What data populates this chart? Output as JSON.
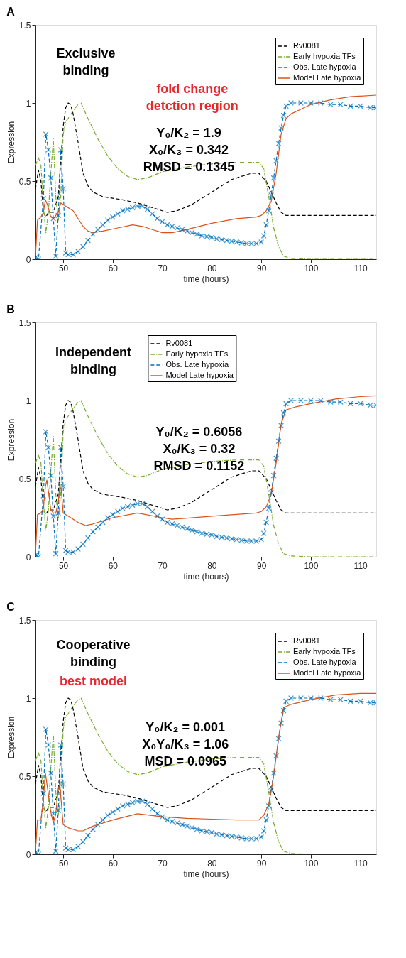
{
  "chart_data": [
    {
      "type": "line",
      "title": "A",
      "xlabel": "time (hours)",
      "ylabel": "Expression",
      "xlim": [
        44.4,
        113.2
      ],
      "ylim": [
        0,
        1.5
      ],
      "xticks": [
        50,
        60,
        70,
        80,
        90,
        100,
        110
      ],
      "yticks": [
        0,
        0.5,
        1,
        1.5
      ],
      "grid": false,
      "legend": "top right",
      "annotations": [
        "Exclusive\nbinding",
        "fold change\ndetction region",
        "Y₀/K₂ = 1.9\nX₀/K₃ = 0.342\nRMSD = 0.1345"
      ],
      "series": [
        {
          "name": "Rv0081",
          "color": "#000000",
          "line_style": "dashed",
          "x": [
            44.4,
            45,
            45.5,
            46,
            46.5,
            47,
            48,
            49,
            50,
            50.5,
            51,
            51.5,
            52,
            53,
            54,
            55,
            56,
            58,
            60,
            62,
            65,
            68,
            71,
            73,
            76,
            80,
            84,
            88,
            89.5,
            91,
            92,
            93,
            94,
            95,
            113.2
          ],
          "values": [
            0.45,
            0.57,
            0.5,
            0.3,
            0.27,
            0.3,
            0.3,
            0.4,
            0.85,
            0.97,
            1.0,
            0.99,
            0.93,
            0.75,
            0.55,
            0.47,
            0.43,
            0.4,
            0.39,
            0.38,
            0.36,
            0.33,
            0.3,
            0.31,
            0.35,
            0.43,
            0.51,
            0.55,
            0.55,
            0.5,
            0.43,
            0.36,
            0.3,
            0.28,
            0.28
          ]
        },
        {
          "name": "Early hypoxia TFs",
          "color": "#77ac30",
          "line_style": "dashdot",
          "x": [
            44.4,
            45,
            45.5,
            46,
            46.5,
            47,
            47.5,
            48,
            48.5,
            49,
            49.5,
            50,
            50.5,
            51,
            52,
            53,
            53.6,
            55,
            57,
            59,
            61,
            63,
            65,
            67,
            70,
            75,
            80,
            85,
            89.5,
            90.5,
            91.5,
            92.5,
            93.5,
            94.5,
            96,
            100,
            113.2
          ],
          "values": [
            0.6,
            0.65,
            0.6,
            0.35,
            0.17,
            0.3,
            0.55,
            0.77,
            0.4,
            0.25,
            0.4,
            0.8,
            0.88,
            0.9,
            0.95,
            0.99,
            1.0,
            0.9,
            0.77,
            0.66,
            0.58,
            0.53,
            0.51,
            0.52,
            0.56,
            0.59,
            0.61,
            0.62,
            0.62,
            0.58,
            0.4,
            0.2,
            0.08,
            0.02,
            0.005,
            0.0,
            0.0
          ]
        },
        {
          "name": "Obs. Late hypoxia",
          "color": "#0072bd",
          "line_style": "dashed",
          "marker": "cross",
          "x": [
            44.4,
            45,
            46,
            46.5,
            47,
            47.5,
            48,
            48.5,
            49,
            49.5,
            50,
            50.5,
            51,
            52,
            53,
            54,
            55,
            56,
            57,
            58,
            59,
            60,
            61,
            62,
            63,
            64,
            65,
            66,
            67,
            68,
            69,
            70,
            71,
            72,
            73,
            74,
            75,
            76,
            77,
            78,
            79,
            80,
            81,
            82,
            83,
            84,
            85,
            86,
            87,
            88,
            89,
            90,
            90.5,
            91,
            91.5,
            92,
            92.5,
            93,
            93.5,
            94,
            94.5,
            95,
            96,
            98,
            100,
            102,
            104,
            106,
            108,
            110,
            112,
            113.2
          ],
          "values": [
            0.01,
            0.0,
            0.39,
            0.8,
            0.7,
            0.52,
            0.26,
            0.02,
            0.28,
            0.7,
            0.45,
            0.04,
            0.03,
            0.03,
            0.05,
            0.08,
            0.12,
            0.16,
            0.19,
            0.22,
            0.25,
            0.27,
            0.29,
            0.31,
            0.32,
            0.33,
            0.34,
            0.34,
            0.32,
            0.29,
            0.26,
            0.24,
            0.22,
            0.21,
            0.2,
            0.19,
            0.18,
            0.17,
            0.16,
            0.15,
            0.145,
            0.14,
            0.13,
            0.125,
            0.12,
            0.115,
            0.11,
            0.105,
            0.1,
            0.1,
            0.1,
            0.11,
            0.15,
            0.22,
            0.31,
            0.41,
            0.52,
            0.63,
            0.74,
            0.84,
            0.92,
            0.98,
            1.0,
            1.0,
            1.0,
            1.0,
            0.99,
            0.99,
            0.98,
            0.98,
            0.97,
            0.97
          ]
        },
        {
          "name": "Model Late hypoxia",
          "color": "#d95319",
          "line_style": "solid",
          "x": [
            44.4,
            44.8,
            45.5,
            46,
            46.4,
            46.8,
            47.5,
            48,
            48.5,
            49,
            49.5,
            50,
            51,
            52,
            53,
            54,
            55,
            56,
            58,
            61,
            64,
            66,
            68,
            70,
            72,
            75,
            80,
            85,
            89,
            90,
            91,
            92,
            93,
            94,
            95,
            96,
            98,
            100,
            104,
            108,
            113.2
          ],
          "values": [
            0.02,
            0.25,
            0.27,
            0.3,
            0.38,
            0.35,
            0.27,
            0.26,
            0.28,
            0.3,
            0.36,
            0.35,
            0.33,
            0.31,
            0.26,
            0.21,
            0.18,
            0.17,
            0.18,
            0.2,
            0.22,
            0.21,
            0.19,
            0.17,
            0.17,
            0.19,
            0.23,
            0.26,
            0.27,
            0.28,
            0.31,
            0.37,
            0.55,
            0.8,
            0.9,
            0.93,
            0.96,
            0.99,
            1.02,
            1.04,
            1.05
          ]
        }
      ]
    },
    {
      "type": "line",
      "title": "B",
      "xlabel": "time (hours)",
      "ylabel": "Expression",
      "xlim": [
        44.4,
        113.2
      ],
      "ylim": [
        0,
        1.5
      ],
      "xticks": [
        50,
        60,
        70,
        80,
        90,
        100,
        110
      ],
      "yticks": [
        0,
        0.5,
        1,
        1.5
      ],
      "grid": false,
      "legend": "top",
      "annotations": [
        "Independent\nbinding",
        "Y₀/K₂ = 0.6056\nX₀/K₃ = 0.32\nRMSD = 0.1152"
      ],
      "series": [
        {
          "name": "Rv0081",
          "color": "#000000",
          "line_style": "dashed",
          "x": [
            44.4,
            45,
            45.5,
            46,
            46.5,
            47,
            48,
            49,
            50,
            50.5,
            51,
            51.5,
            52,
            53,
            54,
            55,
            56,
            58,
            60,
            62,
            65,
            68,
            71,
            73,
            76,
            80,
            84,
            88,
            89.5,
            91,
            92,
            93,
            94,
            95,
            113.2
          ],
          "values": [
            0.45,
            0.57,
            0.5,
            0.3,
            0.27,
            0.3,
            0.3,
            0.4,
            0.85,
            0.97,
            1.0,
            0.99,
            0.93,
            0.75,
            0.55,
            0.47,
            0.43,
            0.4,
            0.39,
            0.38,
            0.36,
            0.33,
            0.3,
            0.31,
            0.35,
            0.43,
            0.51,
            0.55,
            0.55,
            0.5,
            0.43,
            0.36,
            0.3,
            0.28,
            0.28
          ]
        },
        {
          "name": "Early hypoxia TFs",
          "color": "#77ac30",
          "line_style": "dashdot",
          "x": [
            44.4,
            45,
            45.5,
            46,
            46.5,
            47,
            47.5,
            48,
            48.5,
            49,
            49.5,
            50,
            50.5,
            51,
            52,
            53,
            53.6,
            55,
            57,
            59,
            61,
            63,
            65,
            67,
            70,
            75,
            80,
            85,
            89.5,
            90.5,
            91.5,
            92.5,
            93.5,
            94.5,
            96,
            100,
            113.2
          ],
          "values": [
            0.6,
            0.65,
            0.6,
            0.35,
            0.17,
            0.3,
            0.55,
            0.77,
            0.4,
            0.25,
            0.4,
            0.8,
            0.88,
            0.9,
            0.95,
            0.99,
            1.0,
            0.9,
            0.77,
            0.66,
            0.58,
            0.53,
            0.51,
            0.52,
            0.56,
            0.59,
            0.61,
            0.62,
            0.62,
            0.58,
            0.4,
            0.2,
            0.08,
            0.02,
            0.005,
            0.0,
            0.0
          ]
        },
        {
          "name": "Obs. Late hypoxia",
          "color": "#0072bd",
          "line_style": "dashed",
          "marker": "cross",
          "x": [
            44.4,
            45,
            46,
            46.5,
            47,
            47.5,
            48,
            48.5,
            49,
            49.5,
            50,
            50.5,
            51,
            52,
            53,
            54,
            55,
            56,
            57,
            58,
            59,
            60,
            61,
            62,
            63,
            64,
            65,
            66,
            67,
            68,
            69,
            70,
            71,
            72,
            73,
            74,
            75,
            76,
            77,
            78,
            79,
            80,
            81,
            82,
            83,
            84,
            85,
            86,
            87,
            88,
            89,
            90,
            90.5,
            91,
            91.5,
            92,
            92.5,
            93,
            93.5,
            94,
            94.5,
            95,
            96,
            98,
            100,
            102,
            104,
            106,
            108,
            110,
            112,
            113.2
          ],
          "values": [
            0.01,
            0.0,
            0.39,
            0.8,
            0.7,
            0.52,
            0.26,
            0.02,
            0.28,
            0.7,
            0.45,
            0.04,
            0.03,
            0.03,
            0.05,
            0.08,
            0.12,
            0.16,
            0.19,
            0.22,
            0.25,
            0.27,
            0.29,
            0.31,
            0.32,
            0.33,
            0.34,
            0.34,
            0.32,
            0.29,
            0.26,
            0.24,
            0.22,
            0.21,
            0.2,
            0.19,
            0.18,
            0.17,
            0.16,
            0.15,
            0.145,
            0.14,
            0.13,
            0.125,
            0.12,
            0.115,
            0.11,
            0.105,
            0.1,
            0.1,
            0.1,
            0.11,
            0.15,
            0.22,
            0.31,
            0.41,
            0.52,
            0.63,
            0.74,
            0.84,
            0.92,
            0.98,
            1.0,
            1.0,
            1.0,
            1.0,
            0.99,
            0.99,
            0.98,
            0.98,
            0.97,
            0.97
          ]
        },
        {
          "name": "Model Late hypoxia",
          "color": "#d95319",
          "line_style": "solid",
          "x": [
            44.4,
            44.8,
            45.5,
            46,
            46.4,
            46.7,
            47,
            47.5,
            48,
            48.5,
            49,
            49.3,
            49.6,
            50,
            51,
            53,
            54.5,
            56,
            60,
            65,
            70,
            72,
            80,
            89,
            90,
            91,
            92,
            93,
            94,
            95,
            97,
            100,
            105,
            110,
            113.2
          ],
          "values": [
            0.02,
            0.27,
            0.28,
            0.31,
            0.45,
            0.49,
            0.42,
            0.3,
            0.28,
            0.28,
            0.35,
            0.45,
            0.43,
            0.28,
            0.26,
            0.22,
            0.2,
            0.21,
            0.25,
            0.28,
            0.25,
            0.24,
            0.26,
            0.28,
            0.29,
            0.32,
            0.4,
            0.6,
            0.85,
            0.94,
            0.96,
            0.98,
            1.01,
            1.025,
            1.03
          ]
        }
      ]
    },
    {
      "type": "line",
      "title": "C",
      "xlabel": "time (hours)",
      "ylabel": "Expression",
      "xlim": [
        44.4,
        113.2
      ],
      "ylim": [
        0,
        1.5
      ],
      "xticks": [
        50,
        60,
        70,
        80,
        90,
        100,
        110
      ],
      "yticks": [
        0,
        0.5,
        1,
        1.5
      ],
      "grid": false,
      "legend": "top right",
      "annotations": [
        "Cooperative\nbinding",
        "best model",
        "Y₀/K₂ = 0.001\nX₀Y₀/K₃ = 1.06\nMSD = 0.0965"
      ],
      "series": [
        {
          "name": "Rv0081",
          "color": "#000000",
          "line_style": "dashed",
          "x": [
            44.4,
            45,
            45.5,
            46,
            46.5,
            47,
            48,
            49,
            50,
            50.5,
            51,
            51.5,
            52,
            53,
            54,
            55,
            56,
            58,
            60,
            62,
            65,
            68,
            71,
            73,
            76,
            80,
            84,
            88,
            89.5,
            91,
            92,
            93,
            94,
            95,
            113.2
          ],
          "values": [
            0.45,
            0.57,
            0.5,
            0.3,
            0.27,
            0.3,
            0.3,
            0.4,
            0.85,
            0.97,
            1.0,
            0.99,
            0.93,
            0.75,
            0.55,
            0.47,
            0.43,
            0.4,
            0.39,
            0.38,
            0.36,
            0.33,
            0.3,
            0.31,
            0.35,
            0.43,
            0.51,
            0.55,
            0.55,
            0.5,
            0.43,
            0.36,
            0.3,
            0.28,
            0.28
          ]
        },
        {
          "name": "Early hypoxia TFs",
          "color": "#77ac30",
          "line_style": "dashdot",
          "x": [
            44.4,
            45,
            45.5,
            46,
            46.5,
            47,
            47.5,
            48,
            48.5,
            49,
            49.5,
            50,
            50.5,
            51,
            52,
            53,
            53.6,
            55,
            57,
            59,
            61,
            63,
            65,
            67,
            70,
            75,
            80,
            85,
            89.5,
            90.5,
            91.5,
            92.5,
            93.5,
            94.5,
            96,
            100,
            113.2
          ],
          "values": [
            0.6,
            0.65,
            0.6,
            0.35,
            0.17,
            0.3,
            0.55,
            0.77,
            0.4,
            0.25,
            0.4,
            0.8,
            0.88,
            0.9,
            0.95,
            0.99,
            1.0,
            0.9,
            0.77,
            0.66,
            0.58,
            0.53,
            0.51,
            0.52,
            0.56,
            0.59,
            0.61,
            0.62,
            0.62,
            0.58,
            0.4,
            0.2,
            0.08,
            0.02,
            0.005,
            0.0,
            0.0
          ]
        },
        {
          "name": "Obs. Late hypoxia",
          "color": "#0072bd",
          "line_style": "dashed",
          "marker": "cross",
          "x": [
            44.4,
            45,
            46,
            46.5,
            47,
            47.5,
            48,
            48.5,
            49,
            49.5,
            50,
            50.5,
            51,
            52,
            53,
            54,
            55,
            56,
            57,
            58,
            59,
            60,
            61,
            62,
            63,
            64,
            65,
            66,
            67,
            68,
            69,
            70,
            71,
            72,
            73,
            74,
            75,
            76,
            77,
            78,
            79,
            80,
            81,
            82,
            83,
            84,
            85,
            86,
            87,
            88,
            89,
            90,
            90.5,
            91,
            91.5,
            92,
            92.5,
            93,
            93.5,
            94,
            94.5,
            95,
            96,
            98,
            100,
            102,
            104,
            106,
            108,
            110,
            112,
            113.2
          ],
          "values": [
            0.01,
            0.0,
            0.39,
            0.8,
            0.7,
            0.52,
            0.26,
            0.02,
            0.28,
            0.7,
            0.45,
            0.04,
            0.03,
            0.03,
            0.05,
            0.08,
            0.12,
            0.16,
            0.19,
            0.22,
            0.25,
            0.27,
            0.29,
            0.31,
            0.32,
            0.33,
            0.34,
            0.34,
            0.32,
            0.29,
            0.26,
            0.24,
            0.22,
            0.21,
            0.2,
            0.19,
            0.18,
            0.17,
            0.16,
            0.15,
            0.145,
            0.14,
            0.13,
            0.125,
            0.12,
            0.115,
            0.11,
            0.105,
            0.1,
            0.1,
            0.1,
            0.11,
            0.15,
            0.22,
            0.31,
            0.41,
            0.52,
            0.63,
            0.74,
            0.84,
            0.92,
            0.98,
            1.0,
            1.0,
            1.0,
            1.0,
            0.99,
            0.99,
            0.98,
            0.98,
            0.97,
            0.97
          ]
        },
        {
          "name": "Model Late hypoxia",
          "color": "#d95319",
          "line_style": "solid",
          "x": [
            44.4,
            44.8,
            45.5,
            46,
            46.4,
            46.8,
            47.5,
            48,
            48.5,
            49,
            49.3,
            49.7,
            50,
            51,
            53,
            54,
            56,
            60,
            65,
            70,
            75,
            80,
            85,
            89.5,
            90.5,
            91.5,
            92.5,
            93.5,
            94.5,
            96,
            100,
            105,
            110,
            113.2
          ],
          "values": [
            0.02,
            0.22,
            0.22,
            0.35,
            0.52,
            0.43,
            0.27,
            0.2,
            0.26,
            0.42,
            0.45,
            0.3,
            0.19,
            0.17,
            0.15,
            0.15,
            0.18,
            0.22,
            0.26,
            0.24,
            0.23,
            0.225,
            0.22,
            0.22,
            0.25,
            0.32,
            0.5,
            0.75,
            0.94,
            0.96,
            0.99,
            1.02,
            1.03,
            1.03
          ]
        }
      ]
    }
  ]
}
